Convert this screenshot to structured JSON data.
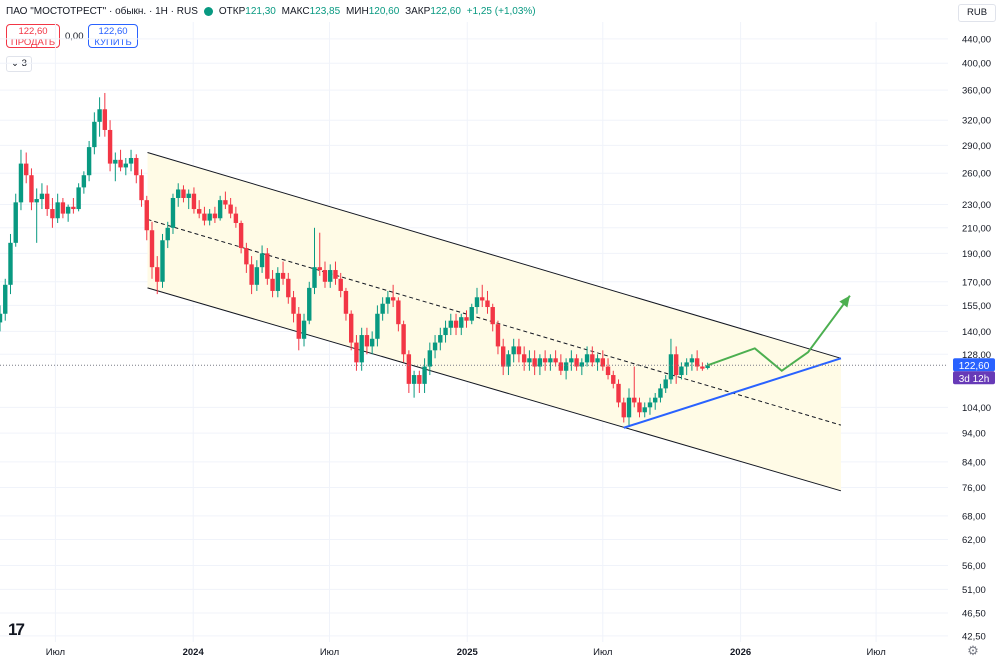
{
  "header": {
    "title": "ПАО \"МОСТОТРЕСТ\" · обыкн. · 1Н · RUS",
    "open_label": "ОТКР",
    "open": "121,30",
    "high_label": "МАКС",
    "high": "123,85",
    "low_label": "МИН",
    "low": "120,60",
    "close_label": "ЗАКР",
    "close": "122,60",
    "change": "+1,25 (+1,03%)"
  },
  "trade": {
    "sell_price": "122,60",
    "sell_label": "ПРОДАТЬ",
    "spread": "0,00",
    "buy_price": "122,60",
    "buy_label": "КУПИТЬ"
  },
  "indicator_toggle": "3",
  "currency": "RUB",
  "price_tag": {
    "price": "122,60",
    "countdown": "3d 12h",
    "value": 122.6
  },
  "colors": {
    "up": "#089981",
    "down": "#f23645",
    "channel_fill": "#fffbe6",
    "accent": "#2962ff",
    "arrow": "#4caf50",
    "price_tag": "#2962ff",
    "countdown_tag": "#673ab7"
  },
  "icons": {
    "settings": "gear-icon",
    "logo": "tradingview-logo-icon",
    "toggle": "chevron-down-icon",
    "status": "market-status-dot-icon"
  },
  "chart_data": {
    "type": "candlestick",
    "scale": "log",
    "ylim": [
      41.5,
      470
    ],
    "y_ticks": [
      {
        "v": 440,
        "label": "440,00"
      },
      {
        "v": 400,
        "label": "400,00"
      },
      {
        "v": 360,
        "label": "360,00"
      },
      {
        "v": 320,
        "label": "320,00"
      },
      {
        "v": 290,
        "label": "290,00"
      },
      {
        "v": 260,
        "label": "260,00"
      },
      {
        "v": 230,
        "label": "230,00"
      },
      {
        "v": 210,
        "label": "210,00"
      },
      {
        "v": 190,
        "label": "190,00"
      },
      {
        "v": 170,
        "label": "170,00"
      },
      {
        "v": 155,
        "label": "155,00"
      },
      {
        "v": 140,
        "label": "140,00"
      },
      {
        "v": 128,
        "label": "128,00"
      },
      {
        "v": 104,
        "label": "104,00"
      },
      {
        "v": 94,
        "label": "94,00"
      },
      {
        "v": 84,
        "label": "84,00"
      },
      {
        "v": 76,
        "label": "76,00"
      },
      {
        "v": 68,
        "label": "68,00"
      },
      {
        "v": 62,
        "label": "62,00"
      },
      {
        "v": 56,
        "label": "56,00"
      },
      {
        "v": 51,
        "label": "51,00"
      },
      {
        "v": 46.5,
        "label": "46,50"
      },
      {
        "v": 42.5,
        "label": "42,50"
      }
    ],
    "x_ticks": [
      {
        "date": "2023-07-01",
        "label": "Июл",
        "bold": false
      },
      {
        "date": "2024-01-01",
        "label": "2024",
        "bold": true
      },
      {
        "date": "2024-07-01",
        "label": "Июл",
        "bold": false
      },
      {
        "date": "2025-01-01",
        "label": "2025",
        "bold": true
      },
      {
        "date": "2025-07-01",
        "label": "Июл",
        "bold": false
      },
      {
        "date": "2026-01-01",
        "label": "2026",
        "bold": true
      },
      {
        "date": "2026-07-01",
        "label": "Июл",
        "bold": false
      }
    ],
    "xlim": [
      "2023-04-18",
      "2026-10-05"
    ],
    "candles": [
      {
        "d": "2023-04-18",
        "o": 145,
        "h": 155,
        "l": 140,
        "c": 150
      },
      {
        "d": "2023-04-25",
        "o": 150,
        "h": 172,
        "l": 146,
        "c": 168
      },
      {
        "d": "2023-05-02",
        "o": 168,
        "h": 205,
        "l": 162,
        "c": 198
      },
      {
        "d": "2023-05-09",
        "o": 198,
        "h": 240,
        "l": 195,
        "c": 232
      },
      {
        "d": "2023-05-16",
        "o": 232,
        "h": 285,
        "l": 225,
        "c": 270
      },
      {
        "d": "2023-05-23",
        "o": 270,
        "h": 282,
        "l": 250,
        "c": 258
      },
      {
        "d": "2023-05-30",
        "o": 258,
        "h": 265,
        "l": 225,
        "c": 232
      },
      {
        "d": "2023-06-06",
        "o": 232,
        "h": 245,
        "l": 198,
        "c": 235
      },
      {
        "d": "2023-06-13",
        "o": 235,
        "h": 250,
        "l": 226,
        "c": 240
      },
      {
        "d": "2023-06-20",
        "o": 240,
        "h": 248,
        "l": 220,
        "c": 226
      },
      {
        "d": "2023-06-27",
        "o": 226,
        "h": 236,
        "l": 210,
        "c": 218
      },
      {
        "d": "2023-07-04",
        "o": 218,
        "h": 240,
        "l": 214,
        "c": 232
      },
      {
        "d": "2023-07-11",
        "o": 232,
        "h": 236,
        "l": 218,
        "c": 222
      },
      {
        "d": "2023-07-18",
        "o": 222,
        "h": 230,
        "l": 215,
        "c": 228
      },
      {
        "d": "2023-07-25",
        "o": 228,
        "h": 236,
        "l": 222,
        "c": 226
      },
      {
        "d": "2023-08-01",
        "o": 226,
        "h": 250,
        "l": 224,
        "c": 246
      },
      {
        "d": "2023-08-08",
        "o": 246,
        "h": 262,
        "l": 240,
        "c": 258
      },
      {
        "d": "2023-08-15",
        "o": 258,
        "h": 295,
        "l": 252,
        "c": 288
      },
      {
        "d": "2023-08-22",
        "o": 288,
        "h": 330,
        "l": 280,
        "c": 318
      },
      {
        "d": "2023-08-29",
        "o": 318,
        "h": 350,
        "l": 300,
        "c": 334
      },
      {
        "d": "2023-09-05",
        "o": 334,
        "h": 356,
        "l": 300,
        "c": 308
      },
      {
        "d": "2023-09-12",
        "o": 308,
        "h": 320,
        "l": 262,
        "c": 270
      },
      {
        "d": "2023-09-19",
        "o": 270,
        "h": 282,
        "l": 252,
        "c": 274
      },
      {
        "d": "2023-09-26",
        "o": 274,
        "h": 285,
        "l": 262,
        "c": 266
      },
      {
        "d": "2023-10-03",
        "o": 266,
        "h": 276,
        "l": 258,
        "c": 270
      },
      {
        "d": "2023-10-10",
        "o": 270,
        "h": 285,
        "l": 262,
        "c": 276
      },
      {
        "d": "2023-10-17",
        "o": 276,
        "h": 280,
        "l": 250,
        "c": 258
      },
      {
        "d": "2023-10-24",
        "o": 258,
        "h": 264,
        "l": 228,
        "c": 234
      },
      {
        "d": "2023-10-31",
        "o": 234,
        "h": 238,
        "l": 200,
        "c": 208
      },
      {
        "d": "2023-11-07",
        "o": 208,
        "h": 215,
        "l": 172,
        "c": 180
      },
      {
        "d": "2023-11-14",
        "o": 180,
        "h": 188,
        "l": 162,
        "c": 170
      },
      {
        "d": "2023-11-21",
        "o": 170,
        "h": 205,
        "l": 166,
        "c": 200
      },
      {
        "d": "2023-11-28",
        "o": 200,
        "h": 215,
        "l": 194,
        "c": 210
      },
      {
        "d": "2023-12-05",
        "o": 210,
        "h": 240,
        "l": 205,
        "c": 236
      },
      {
        "d": "2023-12-12",
        "o": 236,
        "h": 250,
        "l": 228,
        "c": 244
      },
      {
        "d": "2023-12-19",
        "o": 244,
        "h": 248,
        "l": 232,
        "c": 236
      },
      {
        "d": "2023-12-26",
        "o": 236,
        "h": 244,
        "l": 226,
        "c": 240
      },
      {
        "d": "2024-01-02",
        "o": 240,
        "h": 246,
        "l": 222,
        "c": 226
      },
      {
        "d": "2024-01-09",
        "o": 226,
        "h": 234,
        "l": 218,
        "c": 222
      },
      {
        "d": "2024-01-16",
        "o": 222,
        "h": 228,
        "l": 212,
        "c": 216
      },
      {
        "d": "2024-01-23",
        "o": 216,
        "h": 226,
        "l": 212,
        "c": 222
      },
      {
        "d": "2024-01-30",
        "o": 222,
        "h": 228,
        "l": 214,
        "c": 218
      },
      {
        "d": "2024-02-06",
        "o": 218,
        "h": 238,
        "l": 216,
        "c": 234
      },
      {
        "d": "2024-02-13",
        "o": 234,
        "h": 242,
        "l": 226,
        "c": 230
      },
      {
        "d": "2024-02-20",
        "o": 230,
        "h": 236,
        "l": 218,
        "c": 222
      },
      {
        "d": "2024-02-27",
        "o": 222,
        "h": 228,
        "l": 210,
        "c": 214
      },
      {
        "d": "2024-03-05",
        "o": 214,
        "h": 216,
        "l": 190,
        "c": 194
      },
      {
        "d": "2024-03-12",
        "o": 194,
        "h": 198,
        "l": 176,
        "c": 182
      },
      {
        "d": "2024-03-19",
        "o": 182,
        "h": 188,
        "l": 162,
        "c": 168
      },
      {
        "d": "2024-03-26",
        "o": 168,
        "h": 185,
        "l": 164,
        "c": 180
      },
      {
        "d": "2024-04-02",
        "o": 180,
        "h": 196,
        "l": 176,
        "c": 190
      },
      {
        "d": "2024-04-09",
        "o": 190,
        "h": 194,
        "l": 168,
        "c": 172
      },
      {
        "d": "2024-04-16",
        "o": 172,
        "h": 178,
        "l": 160,
        "c": 164
      },
      {
        "d": "2024-04-23",
        "o": 164,
        "h": 180,
        "l": 160,
        "c": 176
      },
      {
        "d": "2024-04-30",
        "o": 176,
        "h": 184,
        "l": 168,
        "c": 172
      },
      {
        "d": "2024-05-07",
        "o": 172,
        "h": 176,
        "l": 156,
        "c": 160
      },
      {
        "d": "2024-05-14",
        "o": 160,
        "h": 164,
        "l": 145,
        "c": 150
      },
      {
        "d": "2024-05-21",
        "o": 150,
        "h": 154,
        "l": 130,
        "c": 136
      },
      {
        "d": "2024-05-28",
        "o": 136,
        "h": 150,
        "l": 132,
        "c": 146
      },
      {
        "d": "2024-06-04",
        "o": 146,
        "h": 170,
        "l": 144,
        "c": 166
      },
      {
        "d": "2024-06-11",
        "o": 166,
        "h": 210,
        "l": 162,
        "c": 180
      },
      {
        "d": "2024-06-18",
        "o": 180,
        "h": 206,
        "l": 174,
        "c": 178
      },
      {
        "d": "2024-06-25",
        "o": 178,
        "h": 184,
        "l": 166,
        "c": 170
      },
      {
        "d": "2024-07-02",
        "o": 170,
        "h": 182,
        "l": 166,
        "c": 178
      },
      {
        "d": "2024-07-09",
        "o": 178,
        "h": 184,
        "l": 168,
        "c": 172
      },
      {
        "d": "2024-07-16",
        "o": 172,
        "h": 176,
        "l": 160,
        "c": 164
      },
      {
        "d": "2024-07-23",
        "o": 164,
        "h": 166,
        "l": 146,
        "c": 150
      },
      {
        "d": "2024-07-30",
        "o": 150,
        "h": 152,
        "l": 130,
        "c": 134
      },
      {
        "d": "2024-08-06",
        "o": 134,
        "h": 138,
        "l": 120,
        "c": 124
      },
      {
        "d": "2024-08-13",
        "o": 124,
        "h": 142,
        "l": 120,
        "c": 138
      },
      {
        "d": "2024-08-20",
        "o": 138,
        "h": 142,
        "l": 128,
        "c": 132
      },
      {
        "d": "2024-08-27",
        "o": 132,
        "h": 140,
        "l": 128,
        "c": 136
      },
      {
        "d": "2024-09-03",
        "o": 136,
        "h": 155,
        "l": 132,
        "c": 150
      },
      {
        "d": "2024-09-10",
        "o": 150,
        "h": 160,
        "l": 146,
        "c": 156
      },
      {
        "d": "2024-09-17",
        "o": 156,
        "h": 164,
        "l": 150,
        "c": 160
      },
      {
        "d": "2024-09-24",
        "o": 160,
        "h": 168,
        "l": 154,
        "c": 158
      },
      {
        "d": "2024-10-01",
        "o": 158,
        "h": 160,
        "l": 140,
        "c": 144
      },
      {
        "d": "2024-10-08",
        "o": 144,
        "h": 146,
        "l": 124,
        "c": 128
      },
      {
        "d": "2024-10-15",
        "o": 128,
        "h": 130,
        "l": 110,
        "c": 114
      },
      {
        "d": "2024-10-22",
        "o": 114,
        "h": 120,
        "l": 108,
        "c": 118
      },
      {
        "d": "2024-10-29",
        "o": 118,
        "h": 120,
        "l": 110,
        "c": 114
      },
      {
        "d": "2024-11-05",
        "o": 114,
        "h": 126,
        "l": 110,
        "c": 122
      },
      {
        "d": "2024-11-12",
        "o": 122,
        "h": 134,
        "l": 118,
        "c": 130
      },
      {
        "d": "2024-11-19",
        "o": 130,
        "h": 138,
        "l": 126,
        "c": 134
      },
      {
        "d": "2024-11-26",
        "o": 134,
        "h": 142,
        "l": 130,
        "c": 138
      },
      {
        "d": "2024-12-03",
        "o": 138,
        "h": 146,
        "l": 134,
        "c": 142
      },
      {
        "d": "2024-12-10",
        "o": 142,
        "h": 150,
        "l": 138,
        "c": 146
      },
      {
        "d": "2024-12-17",
        "o": 146,
        "h": 150,
        "l": 138,
        "c": 142
      },
      {
        "d": "2024-12-24",
        "o": 142,
        "h": 150,
        "l": 138,
        "c": 148
      },
      {
        "d": "2024-12-31",
        "o": 148,
        "h": 152,
        "l": 142,
        "c": 146
      },
      {
        "d": "2025-01-07",
        "o": 146,
        "h": 156,
        "l": 144,
        "c": 154
      },
      {
        "d": "2025-01-14",
        "o": 154,
        "h": 166,
        "l": 150,
        "c": 160
      },
      {
        "d": "2025-01-21",
        "o": 160,
        "h": 168,
        "l": 154,
        "c": 158
      },
      {
        "d": "2025-01-28",
        "o": 158,
        "h": 164,
        "l": 150,
        "c": 154
      },
      {
        "d": "2025-02-04",
        "o": 154,
        "h": 156,
        "l": 140,
        "c": 144
      },
      {
        "d": "2025-02-11",
        "o": 144,
        "h": 146,
        "l": 128,
        "c": 132
      },
      {
        "d": "2025-02-18",
        "o": 132,
        "h": 136,
        "l": 118,
        "c": 122
      },
      {
        "d": "2025-02-25",
        "o": 122,
        "h": 130,
        "l": 118,
        "c": 128
      },
      {
        "d": "2025-03-04",
        "o": 128,
        "h": 136,
        "l": 124,
        "c": 132
      },
      {
        "d": "2025-03-11",
        "o": 132,
        "h": 136,
        "l": 124,
        "c": 128
      },
      {
        "d": "2025-03-18",
        "o": 128,
        "h": 132,
        "l": 120,
        "c": 124
      },
      {
        "d": "2025-03-25",
        "o": 124,
        "h": 130,
        "l": 120,
        "c": 126
      },
      {
        "d": "2025-04-01",
        "o": 126,
        "h": 130,
        "l": 118,
        "c": 122
      },
      {
        "d": "2025-04-08",
        "o": 122,
        "h": 128,
        "l": 118,
        "c": 126
      },
      {
        "d": "2025-04-15",
        "o": 126,
        "h": 130,
        "l": 120,
        "c": 124
      },
      {
        "d": "2025-04-22",
        "o": 124,
        "h": 128,
        "l": 120,
        "c": 126
      },
      {
        "d": "2025-04-29",
        "o": 126,
        "h": 130,
        "l": 122,
        "c": 124
      },
      {
        "d": "2025-05-06",
        "o": 124,
        "h": 128,
        "l": 118,
        "c": 120
      },
      {
        "d": "2025-05-13",
        "o": 120,
        "h": 126,
        "l": 116,
        "c": 124
      },
      {
        "d": "2025-05-20",
        "o": 124,
        "h": 130,
        "l": 120,
        "c": 126
      },
      {
        "d": "2025-05-27",
        "o": 126,
        "h": 128,
        "l": 120,
        "c": 122
      },
      {
        "d": "2025-06-03",
        "o": 122,
        "h": 126,
        "l": 118,
        "c": 124
      },
      {
        "d": "2025-06-10",
        "o": 124,
        "h": 132,
        "l": 122,
        "c": 128
      },
      {
        "d": "2025-06-17",
        "o": 128,
        "h": 132,
        "l": 122,
        "c": 124
      },
      {
        "d": "2025-06-24",
        "o": 124,
        "h": 128,
        "l": 120,
        "c": 126
      },
      {
        "d": "2025-07-01",
        "o": 126,
        "h": 130,
        "l": 120,
        "c": 122
      },
      {
        "d": "2025-07-08",
        "o": 122,
        "h": 126,
        "l": 116,
        "c": 118
      },
      {
        "d": "2025-07-15",
        "o": 118,
        "h": 120,
        "l": 112,
        "c": 114
      },
      {
        "d": "2025-07-22",
        "o": 114,
        "h": 116,
        "l": 104,
        "c": 106
      },
      {
        "d": "2025-07-29",
        "o": 106,
        "h": 108,
        "l": 98,
        "c": 100
      },
      {
        "d": "2025-08-05",
        "o": 100,
        "h": 112,
        "l": 97,
        "c": 108
      },
      {
        "d": "2025-08-12",
        "o": 108,
        "h": 122,
        "l": 104,
        "c": 106
      },
      {
        "d": "2025-08-19",
        "o": 106,
        "h": 108,
        "l": 100,
        "c": 102
      },
      {
        "d": "2025-08-26",
        "o": 102,
        "h": 106,
        "l": 100,
        "c": 104
      },
      {
        "d": "2025-09-02",
        "o": 104,
        "h": 108,
        "l": 101,
        "c": 106
      },
      {
        "d": "2025-09-09",
        "o": 106,
        "h": 110,
        "l": 103,
        "c": 108
      },
      {
        "d": "2025-09-16",
        "o": 108,
        "h": 114,
        "l": 106,
        "c": 112
      },
      {
        "d": "2025-09-23",
        "o": 112,
        "h": 118,
        "l": 110,
        "c": 116
      },
      {
        "d": "2025-09-30",
        "o": 116,
        "h": 136,
        "l": 114,
        "c": 128
      },
      {
        "d": "2025-10-07",
        "o": 128,
        "h": 132,
        "l": 114,
        "c": 118
      },
      {
        "d": "2025-10-14",
        "o": 118,
        "h": 124,
        "l": 116,
        "c": 122
      },
      {
        "d": "2025-10-21",
        "o": 122,
        "h": 126,
        "l": 118,
        "c": 124
      },
      {
        "d": "2025-10-28",
        "o": 124,
        "h": 128,
        "l": 120,
        "c": 126
      },
      {
        "d": "2025-11-04",
        "o": 126,
        "h": 130,
        "l": 120,
        "c": 122
      },
      {
        "d": "2025-11-11",
        "o": 122,
        "h": 124,
        "l": 120,
        "c": 121
      },
      {
        "d": "2025-11-18",
        "o": 121.3,
        "h": 123.85,
        "l": 120.6,
        "c": 122.6
      }
    ],
    "channel": {
      "upper": [
        {
          "d": "2023-11-01",
          "v": 282
        },
        {
          "d": "2026-05-15",
          "v": 126
        }
      ],
      "lower": [
        {
          "d": "2023-11-01",
          "v": 166
        },
        {
          "d": "2026-05-15",
          "v": 75
        }
      ],
      "middle": [
        {
          "d": "2023-11-01",
          "v": 217
        },
        {
          "d": "2026-05-15",
          "v": 97
        }
      ]
    },
    "support_line": [
      {
        "d": "2025-07-29",
        "v": 96
      },
      {
        "d": "2026-05-15",
        "v": 126
      }
    ],
    "forecast_path": [
      {
        "d": "2025-11-18",
        "v": 122.6
      },
      {
        "d": "2026-01-20",
        "v": 131
      },
      {
        "d": "2026-02-25",
        "v": 120
      },
      {
        "d": "2026-04-01",
        "v": 129
      },
      {
        "d": "2026-05-27",
        "v": 161
      }
    ]
  }
}
